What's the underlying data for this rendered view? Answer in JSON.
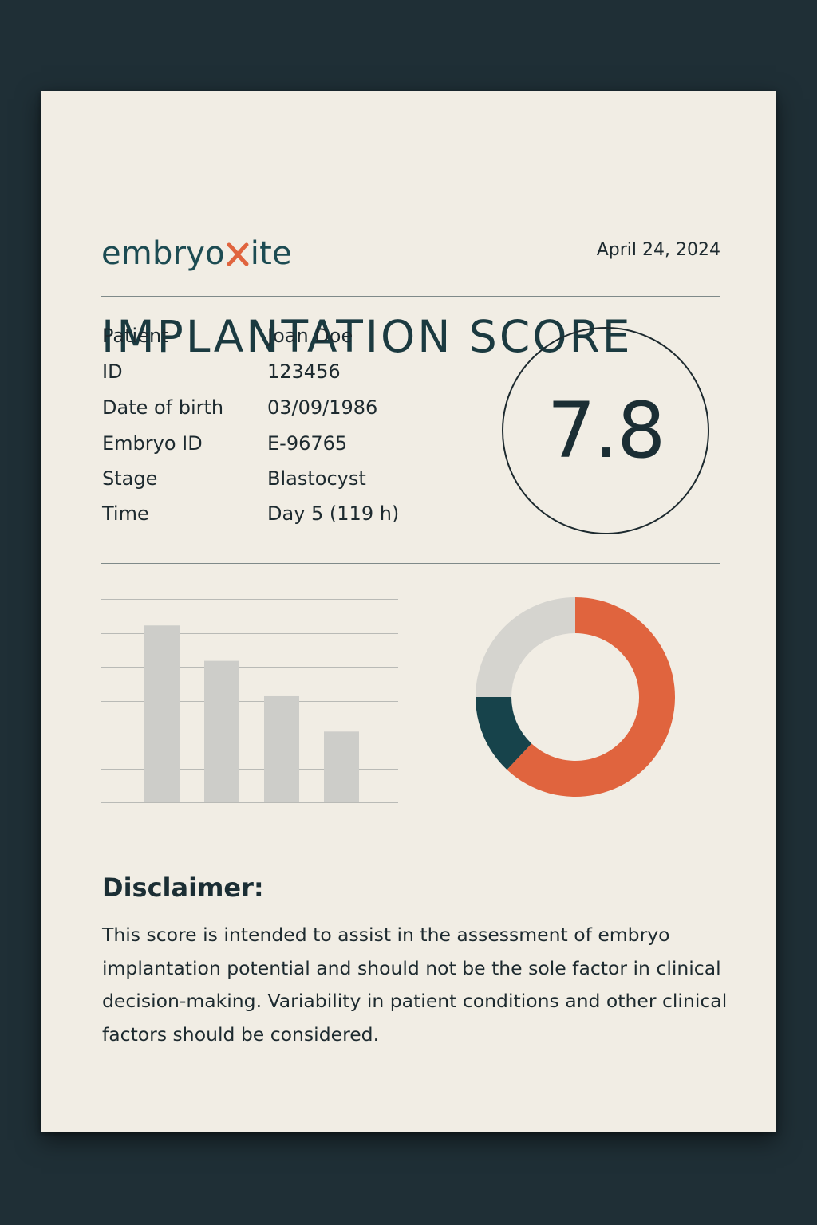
{
  "header": {
    "logo_text_before": "embryo",
    "logo_text_after": "ite",
    "logo_mark_icon": "x-chromosome-icon",
    "logo_mark_color": "#e0643e",
    "date": "April 24, 2024"
  },
  "title": "IMPLANTATION SCORE",
  "patient_info": {
    "rows": [
      {
        "label": "Patient",
        "value": "Joan Doe"
      },
      {
        "label": "ID",
        "value": "123456"
      },
      {
        "label": "Date of birth",
        "value": "03/09/1986"
      },
      {
        "label": "Embryo ID",
        "value": "E-96765"
      },
      {
        "label": "Stage",
        "value": "Blastocyst"
      },
      {
        "label": "Time",
        "value": "Day 5 (119 h)"
      }
    ]
  },
  "score": {
    "value": "7.8"
  },
  "chart_data": [
    {
      "type": "bar",
      "categories": [
        "",
        "",
        "",
        ""
      ],
      "values": [
        5,
        4,
        3,
        2
      ],
      "ylim": [
        0,
        5.75
      ],
      "grid": true,
      "colors": [
        "#cdcdc9"
      ]
    },
    {
      "type": "pie",
      "donut": true,
      "slices": [
        {
          "label": "",
          "value": 62,
          "color": "#e0643e"
        },
        {
          "label": "",
          "value": 13,
          "color": "#17434b"
        },
        {
          "label": "",
          "value": 25,
          "color": "#d5d4cf"
        }
      ]
    }
  ],
  "disclaimer": {
    "title": "Disclaimer:",
    "text": "This score is intended to assist in the assessment of embryo implantation potential and should not be the sole factor in clinical decision-making. Variability in patient conditions and other clinical factors should be considered."
  }
}
